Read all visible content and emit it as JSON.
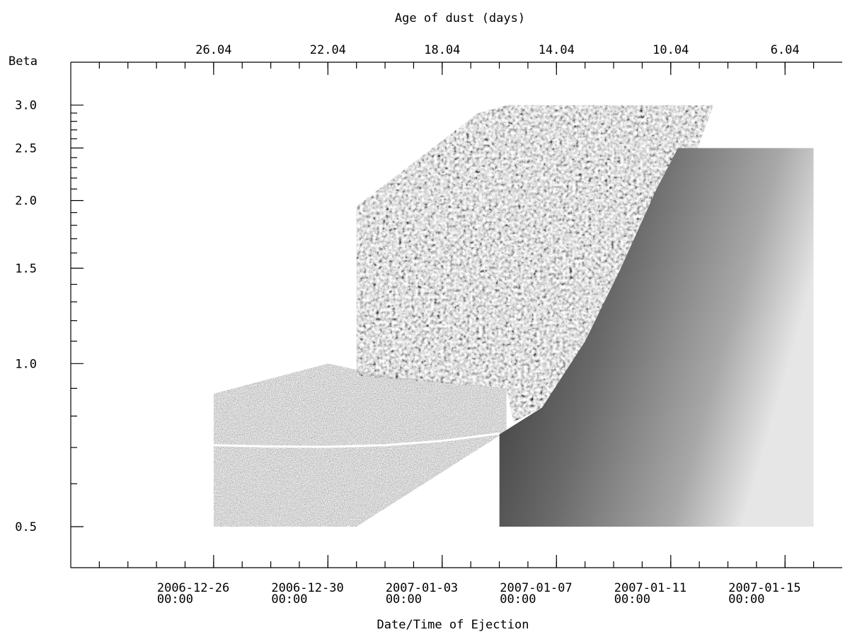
{
  "chart_data": {
    "type": "heatmap",
    "title": "",
    "ylabel": "Beta",
    "xlabel": "Date/Time of Ejection",
    "x2label": "Age of dust (days)",
    "yscale": "log",
    "ylim": [
      0.42,
      3.6
    ],
    "xlim": [
      "2006-12-21 00:00",
      "2007-01-17 00:00"
    ],
    "y_ticks": [
      0.5,
      1.0,
      1.5,
      2.0,
      2.5,
      3.0
    ],
    "y_tick_labels": [
      "0.5",
      "1.0",
      "1.5",
      "2.0",
      "2.5",
      "3.0"
    ],
    "x_ticks": [
      "2006-12-26 00:00",
      "2006-12-30 00:00",
      "2007-01-03 00:00",
      "2007-01-07 00:00",
      "2007-01-11 00:00",
      "2007-01-15 00:00"
    ],
    "x_tick_labels": [
      {
        "date": "2006-12-26",
        "time": "00:00"
      },
      {
        "date": "2006-12-30",
        "time": "00:00"
      },
      {
        "date": "2007-01-03",
        "time": "00:00"
      },
      {
        "date": "2007-01-07",
        "time": "00:00"
      },
      {
        "date": "2007-01-11",
        "time": "00:00"
      },
      {
        "date": "2007-01-15",
        "time": "00:00"
      }
    ],
    "x2_tick_values": [
      26.04,
      22.04,
      18.04,
      14.04,
      10.04,
      6.04
    ],
    "x2_tick_labels": [
      "26.04",
      "22.04",
      "18.04",
      "14.04",
      "10.04",
      "6.04"
    ],
    "grid": false,
    "image_regions": [
      {
        "name": "low-beta-noise-region",
        "style": "noise",
        "polygon": [
          [
            "2006-12-26 00:00",
            0.5
          ],
          [
            "2006-12-31 00:00",
            0.5
          ],
          [
            "2007-01-05 06:00",
            0.75
          ],
          [
            "2007-01-05 06:00",
            0.9
          ],
          [
            "2007-01-01 00:00",
            0.95
          ],
          [
            "2006-12-30 00:00",
            1.0
          ],
          [
            "2006-12-26 00:00",
            0.88
          ]
        ]
      },
      {
        "name": "mid-beta-textured-region",
        "style": "texture",
        "polygon": [
          [
            "2006-12-31 00:00",
            0.95
          ],
          [
            "2006-12-31 00:00",
            1.95
          ],
          [
            "2007-01-04 06:00",
            2.9
          ],
          [
            "2007-01-05 06:00",
            3.0
          ],
          [
            "2007-01-12 12:00",
            3.0
          ],
          [
            "2007-01-11 06:00",
            2.0
          ],
          [
            "2007-01-09 18:00",
            1.4
          ],
          [
            "2007-01-08 00:00",
            1.07
          ],
          [
            "2007-01-06 12:00",
            0.83
          ],
          [
            "2007-01-05 12:00",
            0.78
          ],
          [
            "2007-01-05 06:00",
            0.9
          ],
          [
            "2007-01-03 00:00",
            0.92
          ]
        ]
      },
      {
        "name": "high-beta-smooth-region",
        "style": "smooth",
        "polygon": [
          [
            "2007-01-05 00:00",
            0.5
          ],
          [
            "2007-01-16 00:00",
            0.5
          ],
          [
            "2007-01-16 00:00",
            2.5
          ],
          [
            "2007-01-11 06:00",
            2.5
          ],
          [
            "2007-01-10 12:00",
            2.1
          ],
          [
            "2007-01-09 06:00",
            1.5
          ],
          [
            "2007-01-08 00:00",
            1.1
          ],
          [
            "2007-01-06 12:00",
            0.83
          ],
          [
            "2007-01-05 00:00",
            0.74
          ]
        ]
      }
    ],
    "overlay_line": {
      "name": "bright-streak",
      "points": [
        [
          "2006-12-26 00:00",
          0.707
        ],
        [
          "2006-12-28 00:00",
          0.703
        ],
        [
          "2006-12-30 00:00",
          0.702
        ],
        [
          "2007-01-01 00:00",
          0.707
        ],
        [
          "2007-01-03 00:00",
          0.72
        ],
        [
          "2007-01-05 00:00",
          0.743
        ]
      ],
      "color": "#ffffff"
    },
    "colors": {
      "axis": "#000000",
      "background": "#ffffff"
    }
  }
}
